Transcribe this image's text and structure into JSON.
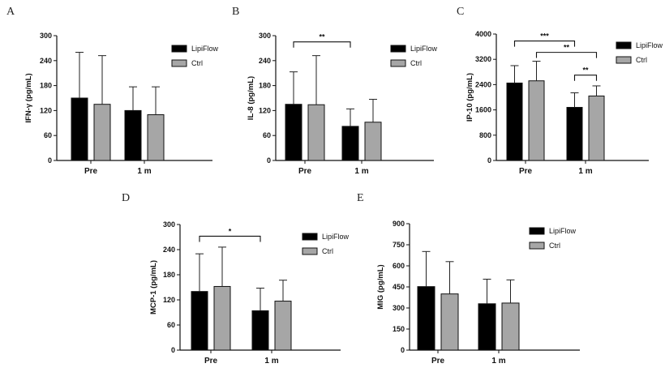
{
  "chart_data": [
    {
      "type": "bar",
      "panel": "A",
      "ylabel": "IFN-γ (pg/mL)",
      "ylim": [
        0,
        300
      ],
      "yticks": [
        0,
        60,
        120,
        180,
        240,
        300
      ],
      "categories": [
        "Pre",
        "1 m"
      ],
      "series": [
        {
          "name": "LipiFlow",
          "color": "#000000",
          "values": [
            150,
            120
          ],
          "errors": [
            110,
            57
          ]
        },
        {
          "name": "Ctrl",
          "color": "#a6a6a6",
          "values": [
            135,
            110
          ],
          "errors": [
            117,
            67
          ]
        }
      ],
      "significance": []
    },
    {
      "type": "bar",
      "panel": "B",
      "ylabel": "IL-8 (pg/mL)",
      "ylim": [
        0,
        300
      ],
      "yticks": [
        0,
        60,
        120,
        180,
        240,
        300
      ],
      "categories": [
        "Pre",
        "1 m"
      ],
      "series": [
        {
          "name": "LipiFlow",
          "color": "#000000",
          "values": [
            135,
            82
          ],
          "errors": [
            78,
            42
          ]
        },
        {
          "name": "Ctrl",
          "color": "#a6a6a6",
          "values": [
            134,
            92
          ],
          "errors": [
            118,
            55
          ]
        }
      ],
      "significance": [
        {
          "from_group": 0,
          "from_series": 0,
          "to_group": 1,
          "to_series": 0,
          "level": 285,
          "label": "**"
        }
      ]
    },
    {
      "type": "bar",
      "panel": "C",
      "ylabel": "IP-10 (pg/mL)",
      "ylim": [
        0,
        4000
      ],
      "yticks": [
        0,
        800,
        1600,
        2400,
        3200,
        4000
      ],
      "categories": [
        "Pre",
        "1 m"
      ],
      "series": [
        {
          "name": "LipiFlow",
          "color": "#000000",
          "values": [
            2450,
            1680
          ],
          "errors": [
            550,
            460
          ]
        },
        {
          "name": "Ctrl",
          "color": "#a6a6a6",
          "values": [
            2520,
            2040
          ],
          "errors": [
            620,
            320
          ]
        }
      ],
      "significance": [
        {
          "from_group": 0,
          "from_series": 0,
          "to_group": 1,
          "to_series": 0,
          "level": 3780,
          "label": "***"
        },
        {
          "from_group": 0,
          "from_series": 1,
          "to_group": 1,
          "to_series": 1,
          "level": 3420,
          "label": "**"
        },
        {
          "from_group": 1,
          "from_series": 0,
          "to_group": 1,
          "to_series": 1,
          "level": 2700,
          "label": "**"
        }
      ]
    },
    {
      "type": "bar",
      "panel": "D",
      "ylabel": "MCP-1 (pg/mL)",
      "ylim": [
        0,
        300
      ],
      "yticks": [
        0,
        60,
        120,
        180,
        240,
        300
      ],
      "categories": [
        "Pre",
        "1 m"
      ],
      "series": [
        {
          "name": "LipiFlow",
          "color": "#000000",
          "values": [
            140,
            94
          ],
          "errors": [
            90,
            54
          ]
        },
        {
          "name": "Ctrl",
          "color": "#a6a6a6",
          "values": [
            152,
            117
          ],
          "errors": [
            94,
            50
          ]
        }
      ],
      "significance": [
        {
          "from_group": 0,
          "from_series": 0,
          "to_group": 1,
          "to_series": 0,
          "level": 272,
          "label": "*"
        }
      ]
    },
    {
      "type": "bar",
      "panel": "E",
      "ylabel": "MIG (pg/mL)",
      "ylim": [
        0,
        900
      ],
      "yticks": [
        0,
        150,
        300,
        450,
        600,
        750,
        900
      ],
      "categories": [
        "Pre",
        "1 m"
      ],
      "series": [
        {
          "name": "LipiFlow",
          "color": "#000000",
          "values": [
            452,
            330
          ],
          "errors": [
            250,
            175
          ]
        },
        {
          "name": "Ctrl",
          "color": "#a6a6a6",
          "values": [
            400,
            335
          ],
          "errors": [
            230,
            165
          ]
        }
      ],
      "significance": []
    }
  ]
}
